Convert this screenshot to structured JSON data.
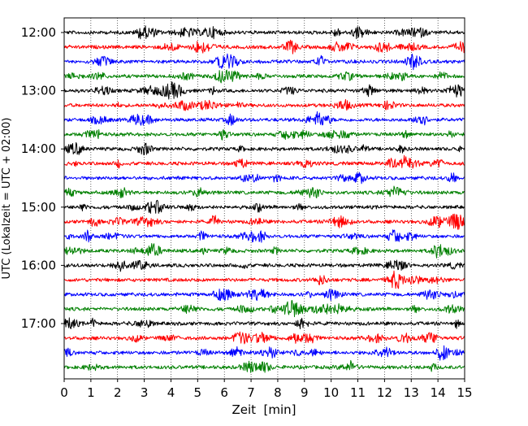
{
  "chart_data": {
    "type": "line",
    "title": "",
    "xlabel": "Zeit  [min]",
    "ylabel": "UTC (Lokalzeit = UTC + 02:00)",
    "xlim": [
      0,
      15
    ],
    "x_ticks": [
      "0",
      "1",
      "2",
      "3",
      "4",
      "5",
      "6",
      "7",
      "8",
      "9",
      "10",
      "11",
      "12",
      "13",
      "14",
      "15"
    ],
    "y_ticks": [
      {
        "label": "12:00",
        "trace": 0
      },
      {
        "label": "13:00",
        "trace": 4
      },
      {
        "label": "14:00",
        "trace": 8
      },
      {
        "label": "15:00",
        "trace": 12
      },
      {
        "label": "16:00",
        "trace": 16
      },
      {
        "label": "17:00",
        "trace": 20
      }
    ],
    "trace_interval_minutes": 15,
    "start_time_utc": "12:00",
    "color_cycle": [
      "#000000",
      "#ff0000",
      "#0000ff",
      "#008000"
    ],
    "grid": "vertical-dotted",
    "traces": [
      {
        "start": "12:00",
        "color": "#000000"
      },
      {
        "start": "12:15",
        "color": "#ff0000"
      },
      {
        "start": "12:30",
        "color": "#0000ff"
      },
      {
        "start": "12:45",
        "color": "#008000"
      },
      {
        "start": "13:00",
        "color": "#000000"
      },
      {
        "start": "13:15",
        "color": "#ff0000"
      },
      {
        "start": "13:30",
        "color": "#0000ff"
      },
      {
        "start": "13:45",
        "color": "#008000"
      },
      {
        "start": "14:00",
        "color": "#000000"
      },
      {
        "start": "14:15",
        "color": "#ff0000"
      },
      {
        "start": "14:30",
        "color": "#0000ff"
      },
      {
        "start": "14:45",
        "color": "#008000"
      },
      {
        "start": "15:00",
        "color": "#000000"
      },
      {
        "start": "15:15",
        "color": "#ff0000"
      },
      {
        "start": "15:30",
        "color": "#0000ff"
      },
      {
        "start": "15:45",
        "color": "#008000"
      },
      {
        "start": "16:00",
        "color": "#000000"
      },
      {
        "start": "16:15",
        "color": "#ff0000"
      },
      {
        "start": "16:30",
        "color": "#0000ff"
      },
      {
        "start": "16:45",
        "color": "#008000"
      },
      {
        "start": "17:00",
        "color": "#000000"
      },
      {
        "start": "17:15",
        "color": "#ff0000"
      },
      {
        "start": "17:30",
        "color": "#0000ff"
      },
      {
        "start": "17:45",
        "color": "#008000"
      }
    ]
  }
}
